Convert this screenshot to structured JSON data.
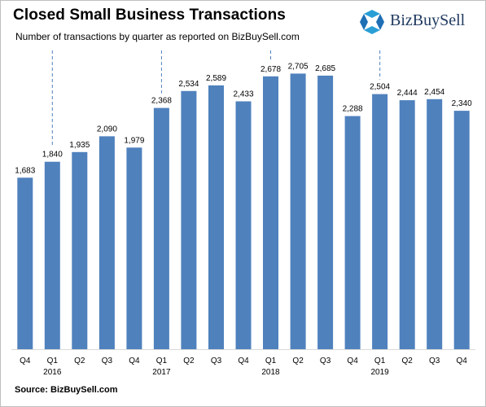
{
  "header": {
    "title": "Closed Small Business Transactions",
    "subtitle": "Number of transactions by quarter as reported on BizBuySell.com"
  },
  "logo": {
    "text": "BizBuySell",
    "icon": "bizbuysell-logo-icon",
    "color": "#1f3a60",
    "accent": "#2a9fd6"
  },
  "footer": {
    "source": "Source: BizBuySell.com"
  },
  "chart_data": {
    "type": "bar",
    "title": "Closed Small Business Transactions",
    "subtitle": "Number of transactions by quarter as reported on BizBuySell.com",
    "bar_color": "#4f81bd",
    "categories": [
      "Q4",
      "Q1",
      "Q2",
      "Q3",
      "Q4",
      "Q1",
      "Q2",
      "Q3",
      "Q4",
      "Q1",
      "Q2",
      "Q3",
      "Q4",
      "Q1",
      "Q2",
      "Q3",
      "Q4"
    ],
    "values": [
      1683,
      1840,
      1935,
      2090,
      1979,
      2368,
      2534,
      2589,
      2433,
      2678,
      2705,
      2685,
      2288,
      2504,
      2444,
      2454,
      2340
    ],
    "data_labels": [
      "1,683",
      "1,840",
      "1,935",
      "2,090",
      "1,979",
      "2,368",
      "2,534",
      "2,589",
      "2,433",
      "2,678",
      "2,705",
      "2,685",
      "2,288",
      "2,504",
      "2,444",
      "2,454",
      "2,340"
    ],
    "year_labels": [
      {
        "index": 1,
        "label": "2016"
      },
      {
        "index": 5,
        "label": "2017"
      },
      {
        "index": 9,
        "label": "2018"
      },
      {
        "index": 13,
        "label": "2019"
      }
    ],
    "year_dividers": [
      1,
      5,
      9,
      13
    ],
    "ylim": [
      0,
      2900
    ],
    "grid": false,
    "legend": "none",
    "xlabel": "",
    "ylabel": ""
  }
}
